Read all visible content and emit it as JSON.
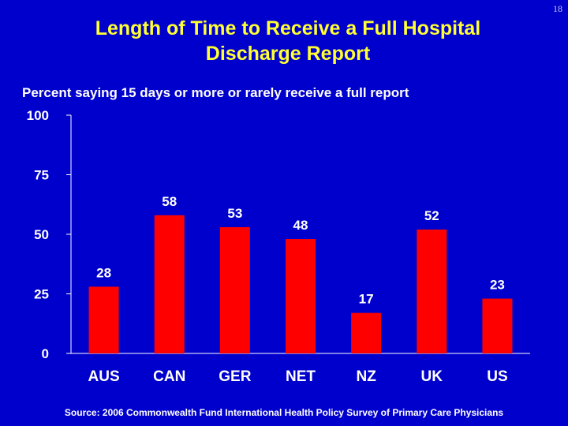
{
  "page_number": "18",
  "chart_data": {
    "type": "bar",
    "title": "Length of Time to Receive a Full Hospital Discharge Report",
    "subtitle": "Percent saying 15 days or more or rarely receive a full report",
    "categories": [
      "AUS",
      "CAN",
      "GER",
      "NET",
      "NZ",
      "UK",
      "US"
    ],
    "values": [
      28,
      58,
      53,
      48,
      17,
      52,
      23
    ],
    "data_labels": [
      "28",
      "58",
      "53",
      "48",
      "17",
      "52",
      "23"
    ],
    "y_ticks": [
      "0",
      "25",
      "50",
      "75",
      "100"
    ],
    "ylim": [
      0,
      100
    ],
    "xlabel": "",
    "ylabel": "",
    "bar_color": "#ff0000",
    "background_color": "#0000cc",
    "title_color": "#ffff33"
  },
  "source": "Source: 2006 Commonwealth Fund International Health Policy Survey of Primary Care Physicians"
}
